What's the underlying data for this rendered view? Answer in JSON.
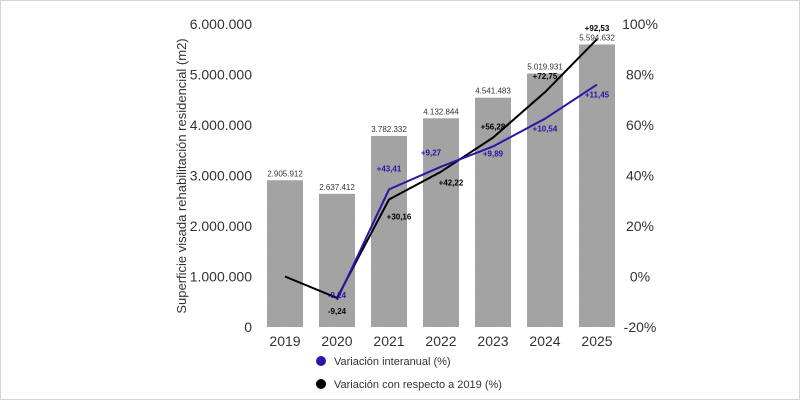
{
  "chart_data": {
    "type": "bar",
    "categories": [
      "2019",
      "2020",
      "2021",
      "2022",
      "2023",
      "2024",
      "2025"
    ],
    "ylabel": "Superficie visada rehabilitación residencial (m2)",
    "ylim": [
      0,
      6000000
    ],
    "y_ticks": [
      "0",
      "1.000.000",
      "2.000.000",
      "3.000.000",
      "4.000.000",
      "5.000.000",
      "6.000.000"
    ],
    "y2lim": [
      -20,
      100
    ],
    "y2_ticks": [
      "-20%",
      "0%",
      "20%",
      "40%",
      "60%",
      "80%",
      "100%"
    ],
    "bars": {
      "values": [
        2905912,
        2637412,
        3782332,
        4132844,
        4541483,
        5019931,
        5594632
      ],
      "labels": [
        "2.905.912",
        "2.637.412",
        "3.782.332",
        "4.132.844",
        "4.541.483",
        "5.019.931",
        "5.594.632"
      ],
      "color": "#a6a6a6"
    },
    "series": [
      {
        "name": "Variación interanual (%)",
        "axis": "y2",
        "color": "#2a16a8",
        "values": [
          null,
          -9.24,
          34.5,
          43.5,
          51.5,
          62.5,
          76
        ],
        "labels": [
          null,
          "-9,24",
          "+43,41",
          "+9,27",
          "+9,89",
          "+10,54",
          "+11,45"
        ]
      },
      {
        "name": "Variación con respecto a 2019 (%)",
        "axis": "y2",
        "color": "#000000",
        "values": [
          0,
          -8.5,
          30.5,
          41.5,
          55,
          73,
          94
        ],
        "labels": [
          null,
          "-9,24",
          "+30,16",
          "+42,22",
          "+56,28",
          "+72,75",
          "+92,53"
        ]
      }
    ],
    "legend": "bottom",
    "grid": false
  }
}
